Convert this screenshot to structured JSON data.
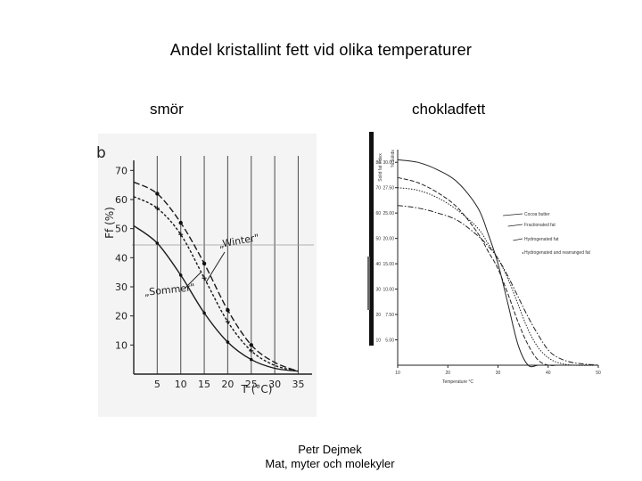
{
  "slide": {
    "title": "Andel kristallint fett vid olika temperaturer",
    "left_label": "smör",
    "right_label": "chokladfett",
    "footer_line1": "Petr Dejmek",
    "footer_line2": "Mat, myter och molekyler"
  },
  "chart_data": [
    {
      "type": "line",
      "panel_letter": "b",
      "xlabel": "T (°C)",
      "ylabel": "Ff (%)",
      "x_ticks": [
        5,
        10,
        15,
        20,
        25,
        30,
        35
      ],
      "y_ticks": [
        10,
        20,
        30,
        40,
        50,
        60,
        70
      ],
      "xlim": [
        0,
        37
      ],
      "ylim": [
        0,
        75
      ],
      "grid": "vertical",
      "x": [
        0,
        5,
        10,
        15,
        20,
        25,
        30,
        35
      ],
      "series": [
        {
          "name": "„Winter\"",
          "values": [
            66,
            62,
            52,
            38,
            22,
            10,
            4,
            1
          ]
        },
        {
          "name": "",
          "values": [
            61,
            57,
            48,
            33,
            18,
            8,
            3,
            1
          ]
        },
        {
          "name": "„Sommer\"",
          "values": [
            51,
            45,
            34,
            21,
            11,
            5,
            2,
            1
          ]
        }
      ],
      "annotations": [
        "„Winter\"",
        "„Sommer\""
      ]
    },
    {
      "type": "line",
      "xlabel": "Temperature °C",
      "ylabel_left": "Solid fat index",
      "ylabel_right": "% Solids",
      "x_ticks": [
        10,
        20,
        30,
        40,
        50
      ],
      "y_ticks_left": [
        10,
        20,
        30,
        40,
        50,
        60,
        70,
        80
      ],
      "y_ticks_right": [
        "5.00",
        "7.50",
        "10.00",
        "15.00",
        "20.00",
        "25.00",
        "27.50",
        "30.00"
      ],
      "xlim": [
        10,
        50
      ],
      "ylim": [
        0,
        85
      ],
      "x": [
        10,
        14,
        18,
        22,
        26,
        28,
        30,
        32,
        34,
        36,
        38,
        40,
        42,
        45,
        50
      ],
      "series": [
        {
          "name": "Cocoa butter",
          "values": [
            81,
            80,
            77,
            72,
            62,
            52,
            40,
            24,
            8,
            0,
            0,
            0,
            0,
            0,
            0
          ]
        },
        {
          "name": "Fractionated fat",
          "values": [
            74,
            72,
            68,
            62,
            52,
            45,
            38,
            28,
            17,
            8,
            2,
            0,
            0,
            0,
            0
          ]
        },
        {
          "name": "Hydrogenated fat",
          "values": [
            70,
            69,
            66,
            61,
            54,
            48,
            42,
            34,
            24,
            14,
            7,
            3,
            1,
            0,
            0
          ]
        },
        {
          "name": "Hydrogenated and rearranged fat",
          "values": [
            63,
            62,
            60,
            57,
            51,
            47,
            42,
            35,
            27,
            19,
            12,
            6,
            3,
            1,
            0
          ]
        }
      ]
    }
  ]
}
